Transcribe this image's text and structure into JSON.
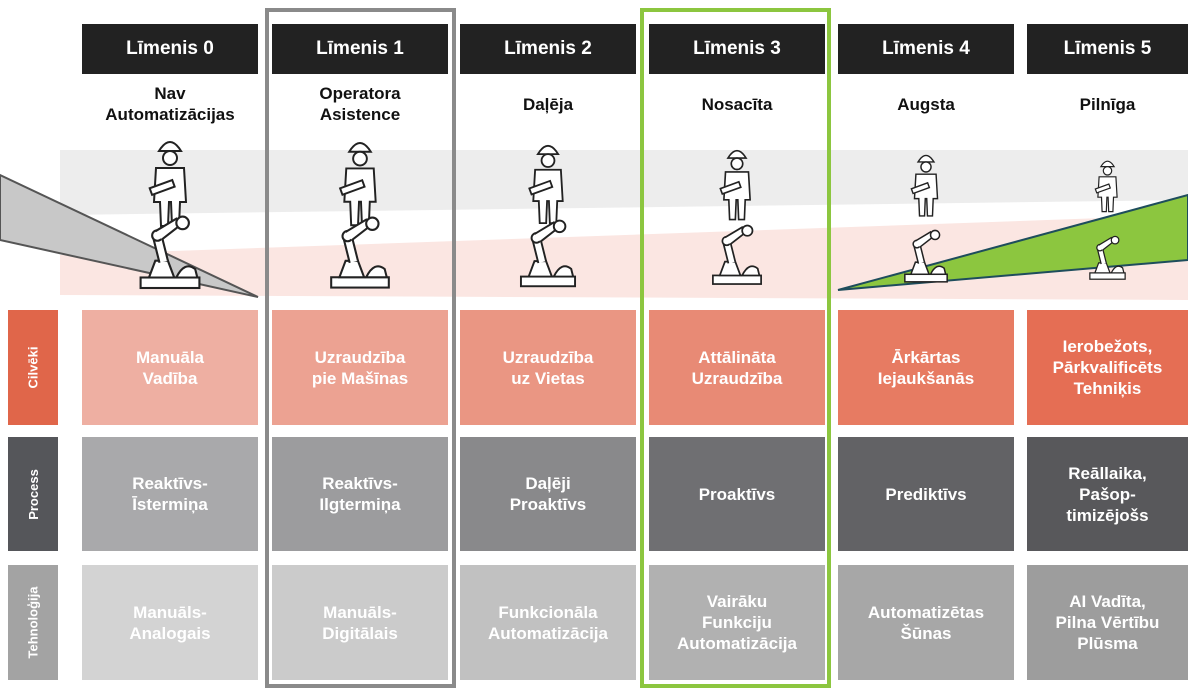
{
  "row_labels": [
    "Cilvēki",
    "Process",
    "Tehnoloģija"
  ],
  "columns": [
    {
      "level": "Līmenis 0",
      "name": [
        "Nav",
        "Automatizācijas"
      ],
      "people": [
        "Manuāla",
        "Vadība"
      ],
      "process": [
        "Reaktīvs-",
        "Īstermiņa"
      ],
      "technology": [
        "Manuāls-",
        "Analogais"
      ]
    },
    {
      "level": "Līmenis 1",
      "name": [
        "Operatora",
        "Asistence"
      ],
      "people": [
        "Uzraudzība",
        "pie Mašīnas"
      ],
      "process": [
        "Reaktīvs-",
        "Ilgtermiņa"
      ],
      "technology": [
        "Manuāls-",
        "Digitālais"
      ]
    },
    {
      "level": "Līmenis 2",
      "name": [
        "Daļēja"
      ],
      "people": [
        "Uzraudzība",
        "uz Vietas"
      ],
      "process": [
        "Daļēji",
        "Proaktīvs"
      ],
      "technology": [
        "Funkcionāla",
        "Automatizācija"
      ]
    },
    {
      "level": "Līmenis 3",
      "name": [
        "Nosacīta"
      ],
      "people": [
        "Attālināta",
        "Uzraudzība"
      ],
      "process": [
        "Proaktīvs"
      ],
      "technology": [
        "Vairāku",
        "Funkciju",
        "Automatizācija"
      ]
    },
    {
      "level": "Līmenis 4",
      "name": [
        "Augsta"
      ],
      "people": [
        "Ārkārtas",
        "Iejaukšanās"
      ],
      "process": [
        "Prediktīvs"
      ],
      "technology": [
        "Automatizētas",
        "Šūnas"
      ]
    },
    {
      "level": "Līmenis 5",
      "name": [
        "Pilnīga"
      ],
      "people": [
        "Ierobežots,",
        "Pārkvalificēts",
        "Tehniķis"
      ],
      "process": [
        "Reāllaika,",
        "Pašop-",
        "timizējošs"
      ],
      "technology": [
        "AI Vadīta,",
        "Pilna Vērtību",
        "Plūsma"
      ]
    }
  ]
}
